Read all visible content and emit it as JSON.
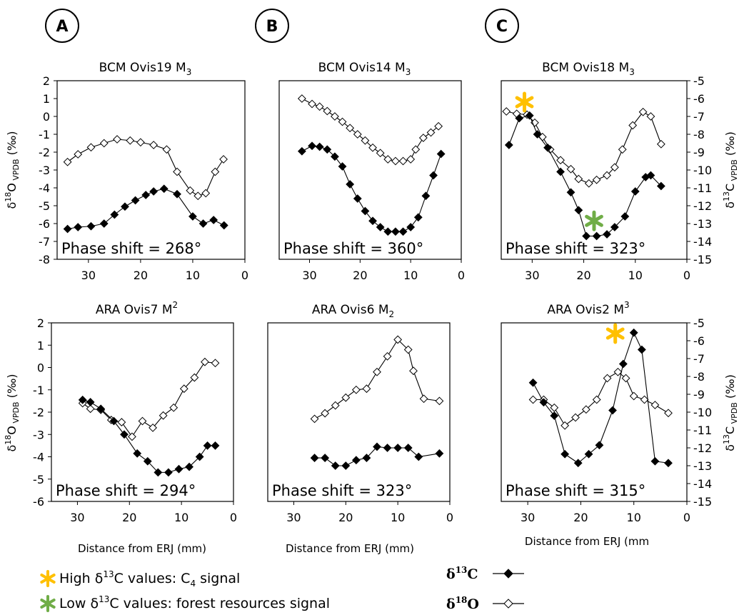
{
  "colors": {
    "high_star": "#FFC000",
    "low_star": "#70AD47",
    "line": "#000000"
  },
  "panel_letters": [
    "A",
    "B",
    "C"
  ],
  "axes": {
    "left_label_main": "δ",
    "left_label_sup": "18",
    "left_label_rest": "O",
    "left_label_sub": "VPDB",
    "left_label_unit": "(‰)",
    "right_label_main": "δ",
    "right_label_sup": "13",
    "right_label_rest": "C",
    "right_label_sub": "VPDB",
    "right_label_unit": "(‰)",
    "xlabel_A": "Distance from ERJ (mm)",
    "xlabel_B": "Distance from ERJ (mm)",
    "xlabel_C": "Distance from ERJ (mm"
  },
  "legend": {
    "high_text": "High δ",
    "high_sup": "13",
    "high_rest": "C values: C",
    "high_sub": "4",
    "high_end": " signal",
    "low_text": "Low δ",
    "low_sup": "13",
    "low_rest": "C values: forest resources signal",
    "c13_main": "δ",
    "c13_sup": "13",
    "c13_rest": "C",
    "o18_main": "δ",
    "o18_sup": "18",
    "o18_rest": "O"
  },
  "chart_data": [
    {
      "type": "line",
      "title": "BCM Ovis19 M",
      "title_sub": "3",
      "title_sup": "",
      "annotation": "Phase shift = 268°",
      "xlim": [
        36,
        0
      ],
      "xticks": [
        30,
        20,
        10,
        0
      ],
      "ylim_o18": [
        -8,
        2
      ],
      "yticks_o18": [
        2,
        1,
        0,
        -1,
        -2,
        -3,
        -4,
        -5,
        -6,
        -7,
        -8
      ],
      "series": [
        {
          "name": "δ18O",
          "x": [
            34,
            32,
            29.5,
            27,
            24.5,
            22,
            20,
            17.5,
            15,
            13,
            10.5,
            9,
            7.5,
            5.7,
            4.1
          ],
          "values": [
            -2.55,
            -2.12,
            -1.73,
            -1.5,
            -1.28,
            -1.35,
            -1.45,
            -1.6,
            -1.85,
            -3.1,
            -4.15,
            -4.45,
            -4.3,
            -3.1,
            -2.4
          ]
        },
        {
          "name": "δ13C",
          "x": [
            34,
            32,
            29.5,
            27,
            25,
            23,
            21,
            19,
            17.5,
            15.5,
            13,
            10,
            8,
            6,
            4
          ],
          "values": [
            -6.3,
            -6.2,
            -6.15,
            -6.0,
            -5.5,
            -5.05,
            -4.7,
            -4.4,
            -4.2,
            -4.05,
            -4.35,
            -5.6,
            -6.0,
            -5.8,
            -6.1
          ],
          "axis": "o18"
        }
      ],
      "stars": []
    },
    {
      "type": "line",
      "title": "BCM Ovis14 M",
      "title_sub": "3",
      "title_sup": "",
      "annotation": "Phase shift = 360°",
      "xlim": [
        36,
        0
      ],
      "xticks": [
        30,
        20,
        10,
        0
      ],
      "ylim_o18": [
        -8,
        2
      ],
      "series": [
        {
          "name": "δ18O",
          "x": [
            31.5,
            29.5,
            28,
            26.5,
            25,
            23.5,
            22,
            20.5,
            19,
            17.5,
            16,
            14.5,
            13,
            11.5,
            10,
            9,
            7.5,
            6,
            4.5
          ],
          "values": [
            1.0,
            0.7,
            0.55,
            0.3,
            0.0,
            -0.3,
            -0.65,
            -1.0,
            -1.35,
            -1.75,
            -2.05,
            -2.4,
            -2.5,
            -2.5,
            -2.4,
            -1.85,
            -1.2,
            -0.9,
            -0.55
          ]
        },
        {
          "name": "δ13C",
          "x": [
            31.5,
            29.5,
            28,
            26.5,
            25,
            23.5,
            22,
            20.5,
            19,
            17.5,
            16,
            14.5,
            13,
            11.5,
            10,
            8.5,
            7,
            5.5,
            4
          ],
          "values": [
            -1.95,
            -1.65,
            -1.7,
            -1.85,
            -2.25,
            -2.8,
            -3.8,
            -4.6,
            -5.3,
            -5.85,
            -6.2,
            -6.45,
            -6.45,
            -6.45,
            -6.2,
            -5.65,
            -4.45,
            -3.3,
            -2.1
          ],
          "axis": "o18"
        }
      ],
      "stars": []
    },
    {
      "type": "line",
      "title": "BCM Ovis18 M",
      "title_sub": "3",
      "title_sup": "",
      "annotation": "Phase shift = 323°",
      "xlim": [
        36,
        0
      ],
      "xticks": [
        30,
        20,
        10,
        0
      ],
      "ylim_c13": [
        -15,
        -5
      ],
      "yticks_c13": [
        -5,
        -6,
        -7,
        -8,
        -9,
        -10,
        -11,
        -12,
        -13,
        -14,
        -15
      ],
      "series": [
        {
          "name": "δ18O",
          "x": [
            35,
            33,
            31,
            29.5,
            28,
            26.5,
            24.5,
            22.5,
            21,
            19,
            17.5,
            15.5,
            14,
            12.5,
            10.5,
            8.5,
            7,
            5
          ],
          "values": [
            -6.72,
            -6.85,
            -6.9,
            -7.35,
            -8.15,
            -8.85,
            -9.45,
            -9.95,
            -10.5,
            -10.75,
            -10.55,
            -10.3,
            -9.85,
            -8.85,
            -7.5,
            -6.75,
            -7.0,
            -8.55
          ]
        },
        {
          "name": "δ13C",
          "x": [
            34.5,
            32.5,
            30.5,
            29,
            27,
            24.5,
            22.5,
            21,
            19.5,
            17.5,
            15.5,
            14,
            12,
            10,
            8,
            7,
            5
          ],
          "values": [
            -8.6,
            -7.1,
            -6.95,
            -8.0,
            -8.75,
            -10.1,
            -11.25,
            -12.25,
            -13.7,
            -13.7,
            -13.6,
            -13.2,
            -12.6,
            -11.2,
            -10.4,
            -10.3,
            -10.9
          ],
          "axis": "c13"
        }
      ],
      "stars": [
        {
          "kind": "high",
          "x": 31.5,
          "value": -6.2,
          "axis": "c13"
        },
        {
          "kind": "low",
          "x": 18,
          "value": -12.85,
          "axis": "c13"
        }
      ]
    },
    {
      "type": "line",
      "title": "ARA Ovis7 M",
      "title_sub": "",
      "title_sup": "2",
      "annotation": "Phase shift = 294°",
      "xlim": [
        35,
        0
      ],
      "xticks": [
        30,
        20,
        10,
        0
      ],
      "ylim_o18": [
        -6,
        2
      ],
      "yticks_o18": [
        2,
        1,
        0,
        -1,
        -2,
        -3,
        -4,
        -5,
        -6
      ],
      "series": [
        {
          "name": "δ18O",
          "x": [
            29,
            27.5,
            25.5,
            23.5,
            21.5,
            19.5,
            17.5,
            15.5,
            13.5,
            11.5,
            9.5,
            7.5,
            5.5,
            3.5
          ],
          "values": [
            -1.6,
            -1.85,
            -1.9,
            -2.35,
            -2.45,
            -3.1,
            -2.4,
            -2.7,
            -2.15,
            -1.8,
            -0.95,
            -0.45,
            0.25,
            0.2
          ]
        },
        {
          "name": "δ13C",
          "x": [
            29,
            27.5,
            25.5,
            23,
            21,
            18.5,
            16.5,
            14.5,
            12.5,
            10.5,
            8.5,
            6.5,
            5,
            3.5
          ],
          "values": [
            -1.45,
            -1.55,
            -1.85,
            -2.4,
            -3.0,
            -3.85,
            -4.2,
            -4.7,
            -4.7,
            -4.55,
            -4.45,
            -4.0,
            -3.5,
            -3.5
          ],
          "axis": "o18"
        }
      ],
      "stars": []
    },
    {
      "type": "line",
      "title": "ARA Ovis6 M",
      "title_sub": "2",
      "title_sup": "",
      "annotation": "Phase shift = 323°",
      "xlim": [
        35,
        0
      ],
      "xticks": [
        30,
        20,
        10,
        0
      ],
      "ylim_o18": [
        -6,
        2
      ],
      "series": [
        {
          "name": "δ18O",
          "x": [
            26,
            24,
            22,
            20,
            18,
            16,
            14,
            12,
            10,
            8,
            7,
            5,
            2
          ],
          "values": [
            -2.3,
            -2.05,
            -1.7,
            -1.35,
            -1.0,
            -0.95,
            -0.2,
            0.5,
            1.25,
            0.8,
            -0.15,
            -1.4,
            -1.5
          ]
        },
        {
          "name": "δ13C",
          "x": [
            26,
            24,
            22,
            20,
            18,
            16,
            14,
            12,
            10,
            8,
            6,
            2
          ],
          "values": [
            -4.05,
            -4.05,
            -4.4,
            -4.4,
            -4.15,
            -4.05,
            -3.55,
            -3.6,
            -3.6,
            -3.6,
            -4.0,
            -3.85
          ],
          "axis": "o18"
        }
      ],
      "stars": []
    },
    {
      "type": "line",
      "title": "ARA Ovis2 M",
      "title_sub": "",
      "title_sup": "3",
      "annotation": "Phase shift = 315°",
      "xlim": [
        35,
        0
      ],
      "xticks": [
        30,
        20,
        10,
        0
      ],
      "ylim_c13": [
        -15,
        -5
      ],
      "yticks_c13": [
        -5,
        -6,
        -7,
        -8,
        -9,
        -10,
        -11,
        -12,
        -13,
        -14,
        -15
      ],
      "series": [
        {
          "name": "δ18O",
          "x": [
            29,
            27,
            25,
            23,
            21,
            19,
            17,
            15,
            13,
            11.5,
            10,
            8,
            6,
            3.5
          ],
          "values": [
            -9.3,
            -9.3,
            -9.75,
            -10.75,
            -10.3,
            -9.85,
            -9.3,
            -8.1,
            -7.75,
            -8.1,
            -9.1,
            -9.3,
            -9.6,
            -10.05
          ]
        },
        {
          "name": "δ18O_dummy",
          "x": [],
          "values": []
        },
        {
          "name": "δ13C",
          "x": [
            29,
            27,
            25,
            23,
            20.5,
            18.5,
            16.5,
            14,
            12,
            10,
            8.5,
            6,
            3.5
          ],
          "values": [
            -8.35,
            -9.45,
            -10.2,
            -12.35,
            -12.85,
            -12.35,
            -11.85,
            -9.9,
            -7.3,
            -5.55,
            -6.5,
            -12.75,
            -12.85
          ],
          "axis": "c13"
        }
      ],
      "stars": [
        {
          "kind": "high",
          "x": 13.5,
          "value": -5.6,
          "axis": "c13"
        }
      ]
    }
  ]
}
